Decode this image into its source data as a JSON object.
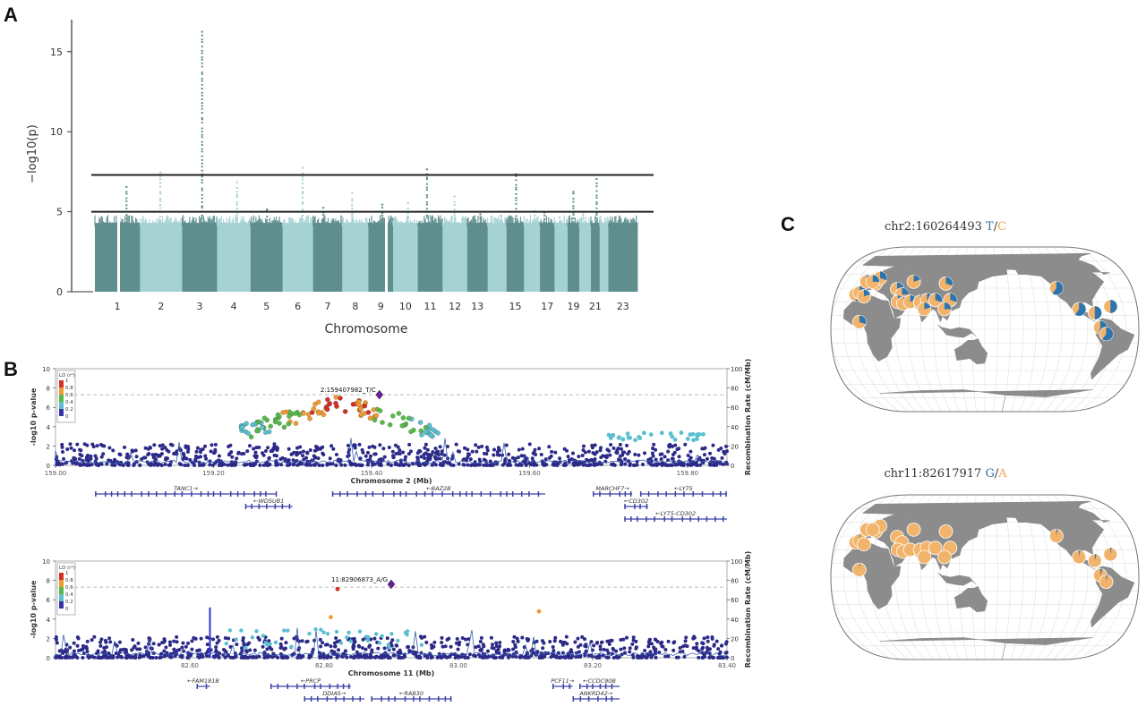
{
  "panel_labels": {
    "a": "A",
    "b": "B",
    "c": "C"
  },
  "colors": {
    "manhattan_dark": "#5e8e8d",
    "manhattan_light": "#a6d2d4",
    "locus_dot": "#2c2a88",
    "gene": "#3a41a8",
    "map_land": "#8c8c8c",
    "map_ocean": "#ffffff",
    "allele_blue": "#2e74ad",
    "allele_orange": "#f2b36a"
  },
  "chart_data": [
    {
      "type": "scatter",
      "subtype": "manhattan",
      "xlabel": "Chromosome",
      "ylabel": "−log10(p)",
      "ylim": [
        0,
        17
      ],
      "yticks": [
        0,
        5,
        10,
        15
      ],
      "threshold_lines": [
        7.3,
        5
      ],
      "categories": [
        "1",
        "2",
        "3",
        "4",
        "5",
        "6",
        "7",
        "8",
        "9",
        "10",
        "11",
        "12",
        "13",
        "15",
        "17",
        "19",
        "21",
        "23"
      ],
      "chromosome_peaks": [
        {
          "chr": "1",
          "peak": 6.6
        },
        {
          "chr": "2",
          "peak": 7.5
        },
        {
          "chr": "3",
          "peak": 16.3
        },
        {
          "chr": "4",
          "peak": 6.9
        },
        {
          "chr": "5",
          "peak": 5.2
        },
        {
          "chr": "6",
          "peak": 7.8
        },
        {
          "chr": "7",
          "peak": 5.3
        },
        {
          "chr": "8",
          "peak": 6.2
        },
        {
          "chr": "9",
          "peak": 5.5
        },
        {
          "chr": "10",
          "peak": 5.6
        },
        {
          "chr": "11",
          "peak": 7.7
        },
        {
          "chr": "12",
          "peak": 6.0
        },
        {
          "chr": "13",
          "peak": 4.9
        },
        {
          "chr": "14",
          "peak": 4.8
        },
        {
          "chr": "15",
          "peak": 7.4
        },
        {
          "chr": "16",
          "peak": 5.1
        },
        {
          "chr": "17",
          "peak": 5.0
        },
        {
          "chr": "18",
          "peak": 4.7
        },
        {
          "chr": "19",
          "peak": 6.3
        },
        {
          "chr": "20",
          "peak": 5.0
        },
        {
          "chr": "21",
          "peak": 7.1
        },
        {
          "chr": "22",
          "peak": 4.6
        },
        {
          "chr": "23",
          "peak": 4.5
        }
      ],
      "baseline_height": 4.3
    },
    {
      "type": "scatter",
      "subtype": "locuszoom",
      "xlabel": "Chromosome 2 (Mb)",
      "ylabel": "-log10 p-value",
      "y2label": "Recombination Rate (cM/Mb)",
      "ylim": [
        0,
        10
      ],
      "y2lim": [
        0,
        100
      ],
      "yticks": [
        0,
        2,
        4,
        6,
        8,
        10
      ],
      "y2ticks": [
        0,
        20,
        40,
        60,
        80,
        100
      ],
      "xlim": [
        159.0,
        159.85
      ],
      "xticks": [
        "159.00",
        "159.20",
        "159.40",
        "159.60",
        "159.80"
      ],
      "xtick_values": [
        159.0,
        159.2,
        159.4,
        159.6,
        159.8
      ],
      "lead_snp": {
        "label": "2:159407982_T/C",
        "x": 159.41,
        "y": 7.3
      },
      "legend_title": "LD (r²)",
      "legend_levels": [
        "1",
        "0.8",
        "0.6",
        "0.4",
        "0.2",
        "0"
      ],
      "ld_colors": [
        "#d43027",
        "#f09a32",
        "#58b94a",
        "#5bbfd0",
        "#3535a8"
      ],
      "hotspot_center": 159.36,
      "genes": [
        {
          "name": "TANC1→",
          "start": 159.05,
          "end": 159.28,
          "row": 0
        },
        {
          "name": "←WDSUB1",
          "start": 159.24,
          "end": 159.3,
          "row": 1
        },
        {
          "name": "←BAZ2B",
          "start": 159.35,
          "end": 159.62,
          "row": 0
        },
        {
          "name": "MARCHF7→",
          "start": 159.68,
          "end": 159.73,
          "row": 0
        },
        {
          "name": "←LY75",
          "start": 159.74,
          "end": 159.85,
          "row": 0
        },
        {
          "name": "←CD302",
          "start": 159.72,
          "end": 159.75,
          "row": 1
        },
        {
          "name": "←LY75-CD302",
          "start": 159.72,
          "end": 159.85,
          "row": 2
        }
      ]
    },
    {
      "type": "scatter",
      "subtype": "locuszoom",
      "xlabel": "Chromosome 11 (Mb)",
      "ylabel": "-log10 p-value",
      "y2label": "Recombination Rate (cM/Mb)",
      "ylim": [
        0,
        10
      ],
      "y2lim": [
        0,
        100
      ],
      "yticks": [
        0,
        2,
        4,
        6,
        8,
        10
      ],
      "y2ticks": [
        0,
        20,
        40,
        60,
        80,
        100
      ],
      "xlim": [
        82.4,
        83.4
      ],
      "xticks": [
        "82.60",
        "82.80",
        "83.00",
        "83.20",
        "83.40"
      ],
      "xtick_values": [
        82.6,
        82.8,
        83.0,
        83.2,
        83.4
      ],
      "lead_snp": {
        "label": "11:82906873_A/G",
        "x": 82.9,
        "y": 7.6
      },
      "legend_title": "LD (r²)",
      "legend_levels": [
        "1",
        "0.8",
        "0.6",
        "0.4",
        "0.2",
        "0"
      ],
      "ld_colors": [
        "#d43027",
        "#f09a32",
        "#58b94a",
        "#5bbfd0",
        "#3535a8"
      ],
      "genes": [
        {
          "name": "←FAM181B",
          "start": 82.61,
          "end": 82.63,
          "row": 0
        },
        {
          "name": "←PRCP",
          "start": 82.72,
          "end": 82.84,
          "row": 0
        },
        {
          "name": "DDIAS→",
          "start": 82.77,
          "end": 82.86,
          "row": 1
        },
        {
          "name": "←RAB30",
          "start": 82.87,
          "end": 82.99,
          "row": 1
        },
        {
          "name": "PCF11→",
          "start": 83.14,
          "end": 83.17,
          "row": 0
        },
        {
          "name": "←CCDC90B",
          "start": 83.18,
          "end": 83.24,
          "row": 0
        },
        {
          "name": "ANKRD42→",
          "start": 83.17,
          "end": 83.24,
          "row": 1
        }
      ]
    }
  ],
  "maps": [
    {
      "prefix": "chr2:160264493 ",
      "allele1": "T",
      "allele2": "C",
      "pies": [
        {
          "lon": -9,
          "lat": 38,
          "blue": 0.5
        },
        {
          "lon": -5,
          "lat": 40,
          "blue": 0.5
        },
        {
          "lon": 2,
          "lat": 36,
          "blue": 0.2
        },
        {
          "lon": -3,
          "lat": 52,
          "blue": 0.25
        },
        {
          "lon": 10,
          "lat": 50,
          "blue": 0.2
        },
        {
          "lon": 12,
          "lat": 56,
          "blue": 0.3
        },
        {
          "lon": 5,
          "lat": 52,
          "blue": 0.25
        },
        {
          "lon": 3,
          "lat": 8,
          "blue": 0.3
        },
        {
          "lon": 40,
          "lat": 44,
          "blue": 0.2
        },
        {
          "lon": 48,
          "lat": 38,
          "blue": 0.25
        },
        {
          "lon": 58,
          "lat": 52,
          "blue": 0.2
        },
        {
          "lon": 45,
          "lat": 30,
          "blue": 0.2
        },
        {
          "lon": 52,
          "lat": 28,
          "blue": 0.15
        },
        {
          "lon": 60,
          "lat": 30,
          "blue": 0.2
        },
        {
          "lon": 72,
          "lat": 30,
          "blue": 0.25
        },
        {
          "lon": 80,
          "lat": 32,
          "blue": 0.2
        },
        {
          "lon": 90,
          "lat": 32,
          "blue": 0.3
        },
        {
          "lon": 100,
          "lat": 50,
          "blue": 0.3
        },
        {
          "lon": 78,
          "lat": 22,
          "blue": 0.2
        },
        {
          "lon": 108,
          "lat": 32,
          "blue": 0.3
        },
        {
          "lon": 102,
          "lat": 22,
          "blue": 0.25
        },
        {
          "lon": -120,
          "lat": 45,
          "blue": 0.6
        },
        {
          "lon": -98,
          "lat": 22,
          "blue": 0.6
        },
        {
          "lon": -80,
          "lat": 18,
          "blue": 0.5
        },
        {
          "lon": -60,
          "lat": 25,
          "blue": 0.5
        },
        {
          "lon": -75,
          "lat": 2,
          "blue": 0.55
        },
        {
          "lon": -68,
          "lat": -5,
          "blue": 0.6
        }
      ]
    },
    {
      "prefix": "chr11:82617917 ",
      "allele1": "G",
      "allele2": "A",
      "pies": [
        {
          "lon": -9,
          "lat": 38,
          "blue": 0.02
        },
        {
          "lon": -5,
          "lat": 40,
          "blue": 0.02
        },
        {
          "lon": 2,
          "lat": 36,
          "blue": 0.0
        },
        {
          "lon": -3,
          "lat": 52,
          "blue": 0.0
        },
        {
          "lon": 10,
          "lat": 50,
          "blue": 0.0
        },
        {
          "lon": 12,
          "lat": 56,
          "blue": 0.0
        },
        {
          "lon": 5,
          "lat": 52,
          "blue": 0.0
        },
        {
          "lon": 3,
          "lat": 8,
          "blue": 0.02
        },
        {
          "lon": 40,
          "lat": 44,
          "blue": 0.0
        },
        {
          "lon": 48,
          "lat": 38,
          "blue": 0.0
        },
        {
          "lon": 58,
          "lat": 52,
          "blue": 0.0
        },
        {
          "lon": 45,
          "lat": 30,
          "blue": 0.0
        },
        {
          "lon": 52,
          "lat": 28,
          "blue": 0.0
        },
        {
          "lon": 60,
          "lat": 30,
          "blue": 0.0
        },
        {
          "lon": 72,
          "lat": 30,
          "blue": 0.0
        },
        {
          "lon": 80,
          "lat": 32,
          "blue": 0.0
        },
        {
          "lon": 90,
          "lat": 32,
          "blue": 0.0
        },
        {
          "lon": 100,
          "lat": 50,
          "blue": 0.0
        },
        {
          "lon": 78,
          "lat": 22,
          "blue": 0.0
        },
        {
          "lon": 108,
          "lat": 32,
          "blue": 0.0
        },
        {
          "lon": 102,
          "lat": 22,
          "blue": 0.0
        },
        {
          "lon": -120,
          "lat": 45,
          "blue": 0.03
        },
        {
          "lon": -98,
          "lat": 22,
          "blue": 0.03
        },
        {
          "lon": -80,
          "lat": 18,
          "blue": 0.04
        },
        {
          "lon": -60,
          "lat": 25,
          "blue": 0.03
        },
        {
          "lon": -75,
          "lat": 2,
          "blue": 0.05
        },
        {
          "lon": -68,
          "lat": -5,
          "blue": 0.03
        }
      ]
    }
  ]
}
